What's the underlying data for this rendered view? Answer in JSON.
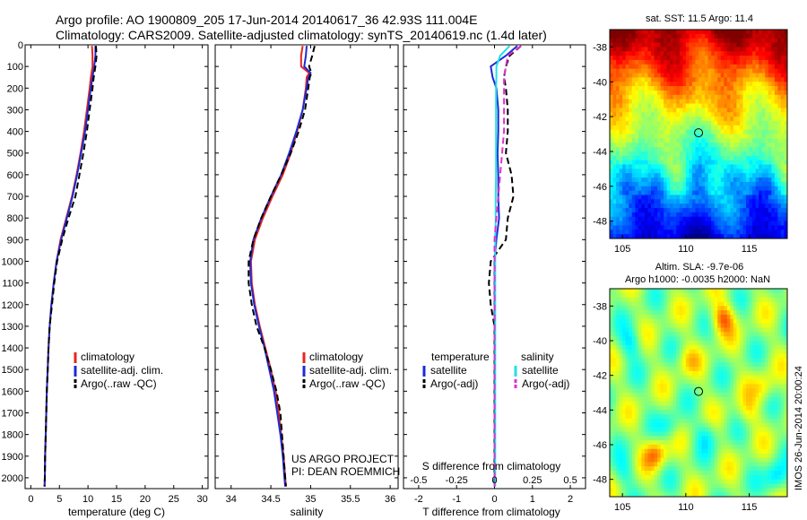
{
  "header": {
    "title_line1": "Argo profile: AO 1900809_205 17-Jun-2014 20140617_36 42.93S 111.004E",
    "title_line2": "Climatology: CARS2009. Satellite-adjusted climatology: synTS_20140619.nc (1.4d later)"
  },
  "footer_stamp": "IMOS 26-Jun-2014 20:00:24",
  "colors": {
    "clim": "#e8251e",
    "sat": "#1c2bd6",
    "argo": "#000000",
    "cyan": "#22e0e8",
    "magenta": "#e030d0"
  },
  "chart_data": [
    {
      "type": "line",
      "panel": "temperature",
      "xlabel": "temperature (deg C)",
      "ylabel": "",
      "xlim": [
        -1,
        31
      ],
      "ylim": [
        2050,
        0
      ],
      "xticks": [
        0,
        5,
        10,
        15,
        20,
        25,
        30
      ],
      "yticks": [
        0,
        100,
        200,
        300,
        400,
        500,
        600,
        700,
        800,
        900,
        1000,
        1100,
        1200,
        1300,
        1400,
        1500,
        1600,
        1700,
        1800,
        1900,
        2000
      ],
      "depth": [
        5,
        50,
        100,
        150,
        200,
        300,
        400,
        500,
        600,
        700,
        800,
        900,
        1000,
        1100,
        1200,
        1300,
        1400,
        1500,
        1600,
        1700,
        1800,
        1900,
        2000,
        2040
      ],
      "legend_position": "lower-left",
      "series": [
        {
          "name": "climatology",
          "color": "clim",
          "style": "solid",
          "values": [
            10.7,
            10.8,
            10.8,
            10.5,
            10.3,
            9.8,
            9.3,
            8.7,
            8.0,
            7.2,
            6.2,
            5.2,
            4.5,
            4.0,
            3.6,
            3.3,
            3.1,
            2.95,
            2.8,
            2.7,
            2.6,
            2.5,
            2.45,
            2.4
          ]
        },
        {
          "name": "satellite-adj. clim.",
          "color": "sat",
          "style": "solid",
          "values": [
            11.3,
            11.3,
            11.1,
            10.8,
            10.5,
            10.0,
            9.5,
            8.8,
            8.1,
            7.3,
            6.3,
            5.3,
            4.5,
            4.0,
            3.6,
            3.3,
            3.1,
            2.95,
            2.8,
            2.7,
            2.6,
            2.5,
            2.45,
            2.4
          ]
        },
        {
          "name": "Argo(..raw -QC)",
          "color": "argo",
          "style": "dashed",
          "values": [
            11.4,
            11.5,
            11.3,
            11.0,
            10.8,
            10.3,
            9.8,
            9.2,
            8.5,
            7.8,
            6.6,
            5.5,
            4.6,
            4.1,
            3.7,
            3.3,
            3.1,
            2.95,
            2.8,
            2.7,
            2.6,
            2.5,
            2.45,
            2.4
          ]
        }
      ]
    },
    {
      "type": "line",
      "panel": "salinity",
      "xlabel": "salinity",
      "ylabel": "",
      "xlim": [
        33.8,
        36.1
      ],
      "ylim": [
        2050,
        0
      ],
      "xticks": [
        34,
        34.5,
        35,
        35.5,
        36
      ],
      "xticklabels": [
        "34",
        "34.5",
        "35",
        "35.5",
        "36"
      ],
      "depth": [
        5,
        50,
        100,
        130,
        150,
        200,
        300,
        400,
        500,
        600,
        700,
        800,
        900,
        1000,
        1100,
        1200,
        1300,
        1400,
        1500,
        1600,
        1700,
        1800,
        1900,
        2000,
        2040
      ],
      "legend_position": "lower-right",
      "series": [
        {
          "name": "climatology",
          "color": "clim",
          "style": "solid",
          "values": [
            34.9,
            34.88,
            34.88,
            34.98,
            34.95,
            34.94,
            34.9,
            34.83,
            34.75,
            34.65,
            34.52,
            34.4,
            34.3,
            34.25,
            34.26,
            34.3,
            34.36,
            34.43,
            34.5,
            34.56,
            34.6,
            34.63,
            34.66,
            34.68,
            34.69
          ]
        },
        {
          "name": "satellite-adj. clim.",
          "color": "sat",
          "style": "solid",
          "values": [
            34.95,
            34.94,
            34.92,
            35.0,
            34.97,
            34.95,
            34.9,
            34.82,
            34.73,
            34.63,
            34.5,
            34.38,
            34.28,
            34.24,
            34.25,
            34.29,
            34.35,
            34.42,
            34.48,
            34.54,
            34.58,
            34.62,
            34.65,
            34.67,
            34.68
          ]
        },
        {
          "name": "Argo(..raw -QC)",
          "color": "argo",
          "style": "dashed",
          "values": [
            35.05,
            35.02,
            34.98,
            35.01,
            34.99,
            34.97,
            34.93,
            34.85,
            34.75,
            34.63,
            34.5,
            34.38,
            34.28,
            34.22,
            34.22,
            34.26,
            34.32,
            34.42,
            34.5,
            34.57,
            34.62,
            34.64,
            34.66,
            34.68,
            34.69
          ]
        }
      ]
    },
    {
      "type": "line",
      "panel": "differences",
      "xlabel": "T difference from climatology",
      "x2label": "S difference from climatology",
      "ylabel": "",
      "xlim": [
        -2.4,
        2.4
      ],
      "ylim": [
        2050,
        0
      ],
      "xticks": [
        -2,
        -1,
        0,
        1,
        2
      ],
      "x2ticks": [
        -0.5,
        -0.25,
        0,
        0.25,
        0.5
      ],
      "x2ticklabels": [
        "-0.5",
        "-0.25",
        "0",
        "0.25",
        "0.5"
      ],
      "depth": [
        5,
        50,
        100,
        150,
        200,
        300,
        400,
        500,
        600,
        700,
        800,
        900,
        1000,
        1100,
        1200,
        1300,
        1400,
        1500,
        1600,
        1700,
        1800,
        1900,
        2000,
        2040
      ],
      "legend_position": "lower-center",
      "legend_temperature_title": "temperature",
      "legend_salinity_title": "salinity",
      "series": [
        {
          "name": "satellite",
          "group": "temperature",
          "color": "sat",
          "style": "solid",
          "values": [
            0.6,
            0.3,
            -0.1,
            -0.05,
            0.05,
            0.1,
            0.1,
            0.08,
            0.1,
            0.1,
            0.12,
            0.05,
            0.0,
            0.0,
            0.0,
            0.0,
            0.0,
            0.0,
            0.0,
            0.0,
            0.0,
            0.0,
            0.0,
            0.0
          ]
        },
        {
          "name": "Argo(-adj)",
          "group": "temperature",
          "color": "argo",
          "style": "dashed",
          "values": [
            0.7,
            0.4,
            0.3,
            0.25,
            0.3,
            0.35,
            0.35,
            0.3,
            0.45,
            0.5,
            0.35,
            0.3,
            -0.1,
            -0.15,
            -0.1,
            0.0,
            0.0,
            0.0,
            0.0,
            0.0,
            0.0,
            0.0,
            0.0,
            0.0
          ]
        },
        {
          "name": "satellite",
          "group": "salinity",
          "color": "cyan",
          "style": "solid",
          "values": [
            0.4,
            0.15,
            0.05,
            0.05,
            0.04,
            0.04,
            0.04,
            0.04,
            0.04,
            0.03,
            0.03,
            0.02,
            0.02,
            0.02,
            0.02,
            0.02,
            0.02,
            0.02,
            0.02,
            0.02,
            0.02,
            0.02,
            0.02,
            0.02
          ]
        },
        {
          "name": "Argo(-adj)",
          "group": "salinity",
          "color": "magenta",
          "style": "dashed",
          "values": [
            0.7,
            0.35,
            0.3,
            0.25,
            0.25,
            0.25,
            0.25,
            0.2,
            0.15,
            0.1,
            0.05,
            0.0,
            0.0,
            0.0,
            0.0,
            0.0,
            0.0,
            0.0,
            0.0,
            0.0,
            0.0,
            0.0,
            0.0,
            0.0
          ]
        }
      ]
    },
    {
      "type": "heatmap",
      "panel": "sst-map",
      "title": "sat. SST: 11.5 Argo: 11.4",
      "xlim": [
        104,
        118
      ],
      "ylim": [
        -49,
        -37
      ],
      "xticks": [
        105,
        110,
        115
      ],
      "yticks": [
        -38,
        -40,
        -42,
        -44,
        -46,
        -48
      ],
      "marker": {
        "lon": 111.004,
        "lat": -42.93
      },
      "colormap": "jet",
      "value_description": "SST decreasing southward, warm (red/orange) north of 40S, green near 43S, blue south of 46S"
    },
    {
      "type": "heatmap",
      "panel": "sla-map",
      "title_line1": "Altim. SLA: -9.7e-06",
      "title_line2": "Argo h1000: -0.0035 h2000: NaN",
      "xlim": [
        104,
        118
      ],
      "ylim": [
        -49,
        -37
      ],
      "xticks": [
        105,
        110,
        115
      ],
      "yticks": [
        -38,
        -40,
        -42,
        -44,
        -46,
        -48
      ],
      "marker": {
        "lon": 111.004,
        "lat": -42.93
      },
      "colormap": "jet"
    }
  ],
  "annotations": {
    "project_line1": "US ARGO PROJECT",
    "project_line2": "PI: DEAN ROEMMICH"
  }
}
